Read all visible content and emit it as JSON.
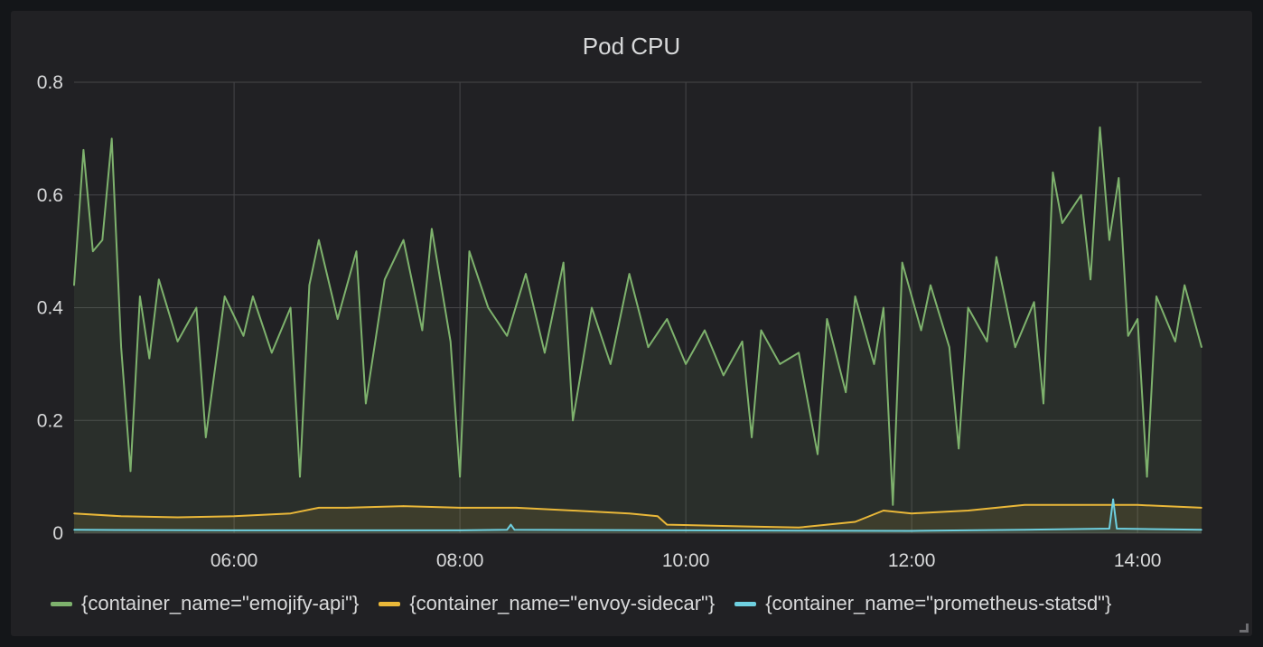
{
  "panel": {
    "title": "Pod CPU"
  },
  "colors": {
    "background": "#141619",
    "panel": "#212124",
    "grid": "#464649",
    "text": "#d8d9da"
  },
  "chart_data": {
    "type": "area",
    "title": "Pod CPU",
    "xlabel": "",
    "ylabel": "",
    "ylim": [
      0,
      0.8
    ],
    "xlim": [
      "04:35",
      "14:34"
    ],
    "yticks": [
      "0",
      "0.2",
      "0.4",
      "0.6",
      "0.8"
    ],
    "xticks": [
      "06:00",
      "08:00",
      "10:00",
      "12:00",
      "14:00"
    ],
    "grid": true,
    "legend_position": "bottom-left",
    "series": [
      {
        "name": "{container_name=\"emojify-api\"}",
        "color": "#7eb26d",
        "points": [
          [
            "04:35",
            0.44
          ],
          [
            "04:40",
            0.68
          ],
          [
            "04:45",
            0.5
          ],
          [
            "04:50",
            0.52
          ],
          [
            "04:55",
            0.7
          ],
          [
            "05:00",
            0.33
          ],
          [
            "05:05",
            0.11
          ],
          [
            "05:10",
            0.42
          ],
          [
            "05:15",
            0.31
          ],
          [
            "05:20",
            0.45
          ],
          [
            "05:30",
            0.34
          ],
          [
            "05:40",
            0.4
          ],
          [
            "05:45",
            0.17
          ],
          [
            "05:55",
            0.42
          ],
          [
            "06:05",
            0.35
          ],
          [
            "06:10",
            0.42
          ],
          [
            "06:20",
            0.32
          ],
          [
            "06:30",
            0.4
          ],
          [
            "06:35",
            0.1
          ],
          [
            "06:40",
            0.44
          ],
          [
            "06:45",
            0.52
          ],
          [
            "06:55",
            0.38
          ],
          [
            "07:05",
            0.5
          ],
          [
            "07:10",
            0.23
          ],
          [
            "07:20",
            0.45
          ],
          [
            "07:30",
            0.52
          ],
          [
            "07:40",
            0.36
          ],
          [
            "07:45",
            0.54
          ],
          [
            "07:55",
            0.34
          ],
          [
            "08:00",
            0.1
          ],
          [
            "08:05",
            0.5
          ],
          [
            "08:15",
            0.4
          ],
          [
            "08:25",
            0.35
          ],
          [
            "08:35",
            0.46
          ],
          [
            "08:45",
            0.32
          ],
          [
            "08:55",
            0.48
          ],
          [
            "09:00",
            0.2
          ],
          [
            "09:10",
            0.4
          ],
          [
            "09:20",
            0.3
          ],
          [
            "09:30",
            0.46
          ],
          [
            "09:40",
            0.33
          ],
          [
            "09:50",
            0.38
          ],
          [
            "10:00",
            0.3
          ],
          [
            "10:10",
            0.36
          ],
          [
            "10:20",
            0.28
          ],
          [
            "10:30",
            0.34
          ],
          [
            "10:35",
            0.17
          ],
          [
            "10:40",
            0.36
          ],
          [
            "10:50",
            0.3
          ],
          [
            "11:00",
            0.32
          ],
          [
            "11:10",
            0.14
          ],
          [
            "11:15",
            0.38
          ],
          [
            "11:25",
            0.25
          ],
          [
            "11:30",
            0.42
          ],
          [
            "11:40",
            0.3
          ],
          [
            "11:45",
            0.4
          ],
          [
            "11:50",
            0.05
          ],
          [
            "11:55",
            0.48
          ],
          [
            "12:05",
            0.36
          ],
          [
            "12:10",
            0.44
          ],
          [
            "12:20",
            0.33
          ],
          [
            "12:25",
            0.15
          ],
          [
            "12:30",
            0.4
          ],
          [
            "12:40",
            0.34
          ],
          [
            "12:45",
            0.49
          ],
          [
            "12:55",
            0.33
          ],
          [
            "13:05",
            0.41
          ],
          [
            "13:10",
            0.23
          ],
          [
            "13:15",
            0.64
          ],
          [
            "13:20",
            0.55
          ],
          [
            "13:30",
            0.6
          ],
          [
            "13:35",
            0.45
          ],
          [
            "13:40",
            0.72
          ],
          [
            "13:45",
            0.52
          ],
          [
            "13:50",
            0.63
          ],
          [
            "13:55",
            0.35
          ],
          [
            "14:00",
            0.38
          ],
          [
            "14:05",
            0.1
          ],
          [
            "14:10",
            0.42
          ],
          [
            "14:20",
            0.34
          ],
          [
            "14:25",
            0.44
          ],
          [
            "14:34",
            0.33
          ]
        ]
      },
      {
        "name": "{container_name=\"envoy-sidecar\"}",
        "color": "#eab839",
        "points": [
          [
            "04:35",
            0.035
          ],
          [
            "05:00",
            0.03
          ],
          [
            "05:30",
            0.028
          ],
          [
            "06:00",
            0.03
          ],
          [
            "06:30",
            0.035
          ],
          [
            "06:45",
            0.045
          ],
          [
            "07:00",
            0.045
          ],
          [
            "07:30",
            0.048
          ],
          [
            "08:00",
            0.045
          ],
          [
            "08:30",
            0.045
          ],
          [
            "09:00",
            0.04
          ],
          [
            "09:30",
            0.035
          ],
          [
            "09:45",
            0.03
          ],
          [
            "09:50",
            0.015
          ],
          [
            "10:30",
            0.012
          ],
          [
            "11:00",
            0.01
          ],
          [
            "11:15",
            0.015
          ],
          [
            "11:30",
            0.02
          ],
          [
            "11:45",
            0.04
          ],
          [
            "12:00",
            0.035
          ],
          [
            "12:30",
            0.04
          ],
          [
            "12:45",
            0.045
          ],
          [
            "13:00",
            0.05
          ],
          [
            "13:30",
            0.05
          ],
          [
            "14:00",
            0.05
          ],
          [
            "14:34",
            0.045
          ]
        ]
      },
      {
        "name": "{container_name=\"prometheus-statsd\"}",
        "color": "#6ed0e0",
        "points": [
          [
            "04:35",
            0.006
          ],
          [
            "06:00",
            0.005
          ],
          [
            "08:00",
            0.005
          ],
          [
            "08:25",
            0.006
          ],
          [
            "08:27",
            0.015
          ],
          [
            "08:29",
            0.006
          ],
          [
            "10:00",
            0.005
          ],
          [
            "12:00",
            0.004
          ],
          [
            "13:00",
            0.006
          ],
          [
            "13:45",
            0.008
          ],
          [
            "13:47",
            0.06
          ],
          [
            "13:49",
            0.008
          ],
          [
            "14:34",
            0.006
          ]
        ]
      }
    ]
  }
}
